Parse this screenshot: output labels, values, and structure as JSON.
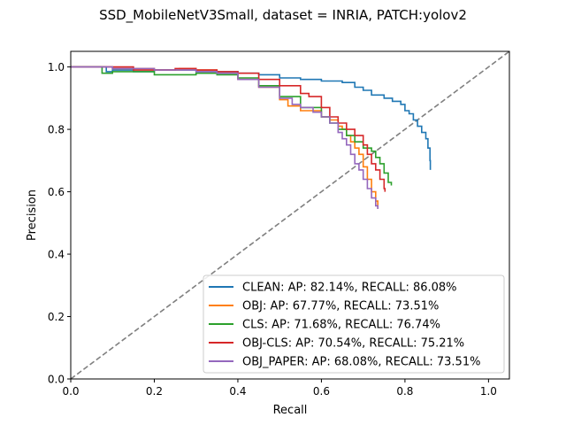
{
  "chart_data": {
    "type": "line",
    "title": "SSD_MobileNetV3Small, dataset = INRIA, PATCH:yolov2",
    "xlabel": "Recall",
    "ylabel": "Precision",
    "xlim": [
      0,
      1.05
    ],
    "ylim": [
      0,
      1.05
    ],
    "xticks": [
      0.0,
      0.2,
      0.4,
      0.6,
      0.8,
      1.0
    ],
    "yticks": [
      0.0,
      0.2,
      0.4,
      0.6,
      0.8,
      1.0
    ],
    "xtick_labels": [
      "0.0",
      "0.2",
      "0.4",
      "0.6",
      "0.8",
      "1.0"
    ],
    "ytick_labels": [
      "0.0",
      "0.2",
      "0.4",
      "0.6",
      "0.8",
      "1.0"
    ],
    "grid": false,
    "legend_position": "lower-right",
    "reference_line": {
      "style": "dashed",
      "color": "#7f7f7f",
      "x": [
        0,
        1.05
      ],
      "y": [
        0,
        1.05
      ]
    },
    "series": [
      {
        "name": "CLEAN: AP: 82.14%, RECALL: 86.08%",
        "color": "#1f77b4",
        "x": [
          0.0,
          0.08,
          0.085,
          0.1,
          0.15,
          0.2,
          0.25,
          0.3,
          0.35,
          0.4,
          0.45,
          0.5,
          0.55,
          0.6,
          0.62,
          0.65,
          0.68,
          0.7,
          0.72,
          0.75,
          0.77,
          0.79,
          0.8,
          0.81,
          0.82,
          0.83,
          0.84,
          0.85,
          0.855,
          0.86,
          0.8608
        ],
        "y": [
          1.0,
          1.0,
          0.985,
          0.99,
          0.985,
          0.99,
          0.99,
          0.985,
          0.985,
          0.98,
          0.975,
          0.965,
          0.96,
          0.955,
          0.955,
          0.95,
          0.935,
          0.925,
          0.91,
          0.9,
          0.89,
          0.88,
          0.86,
          0.85,
          0.83,
          0.81,
          0.79,
          0.77,
          0.74,
          0.7,
          0.67
        ]
      },
      {
        "name": "OBJ: AP: 67.77%, RECALL: 73.51%",
        "color": "#ff7f0e",
        "x": [
          0.0,
          0.1,
          0.2,
          0.26,
          0.3,
          0.35,
          0.4,
          0.45,
          0.5,
          0.52,
          0.55,
          0.57,
          0.6,
          0.62,
          0.64,
          0.65,
          0.66,
          0.67,
          0.68,
          0.69,
          0.7,
          0.71,
          0.72,
          0.73,
          0.7351
        ],
        "y": [
          1.0,
          0.995,
          0.99,
          0.995,
          0.99,
          0.98,
          0.96,
          0.935,
          0.895,
          0.875,
          0.86,
          0.86,
          0.84,
          0.83,
          0.81,
          0.8,
          0.78,
          0.76,
          0.74,
          0.72,
          0.68,
          0.64,
          0.6,
          0.57,
          0.545
        ]
      },
      {
        "name": "CLS: AP: 71.68%, RECALL: 76.74%",
        "color": "#2ca02c",
        "x": [
          0.0,
          0.07,
          0.075,
          0.1,
          0.15,
          0.2,
          0.3,
          0.35,
          0.4,
          0.45,
          0.5,
          0.55,
          0.6,
          0.62,
          0.64,
          0.66,
          0.68,
          0.7,
          0.72,
          0.73,
          0.74,
          0.75,
          0.76,
          0.7674
        ],
        "y": [
          1.0,
          1.0,
          0.98,
          0.985,
          0.985,
          0.975,
          0.98,
          0.975,
          0.965,
          0.94,
          0.905,
          0.87,
          0.84,
          0.82,
          0.8,
          0.78,
          0.76,
          0.74,
          0.73,
          0.71,
          0.69,
          0.66,
          0.63,
          0.62
        ]
      },
      {
        "name": "OBJ-CLS: AP: 70.54%, RECALL: 75.21%",
        "color": "#d62728",
        "x": [
          0.0,
          0.1,
          0.15,
          0.2,
          0.25,
          0.3,
          0.35,
          0.4,
          0.45,
          0.5,
          0.55,
          0.57,
          0.6,
          0.62,
          0.64,
          0.66,
          0.68,
          0.7,
          0.71,
          0.72,
          0.73,
          0.74,
          0.75,
          0.7521
        ],
        "y": [
          1.0,
          1.0,
          0.99,
          0.99,
          0.995,
          0.99,
          0.985,
          0.98,
          0.96,
          0.94,
          0.915,
          0.905,
          0.87,
          0.84,
          0.82,
          0.8,
          0.78,
          0.75,
          0.72,
          0.69,
          0.67,
          0.64,
          0.61,
          0.6
        ]
      },
      {
        "name": "OBJ_PAPER: AP: 68.08%, RECALL: 73.51%",
        "color": "#9467bd",
        "x": [
          0.0,
          0.1,
          0.2,
          0.3,
          0.35,
          0.4,
          0.45,
          0.5,
          0.53,
          0.55,
          0.58,
          0.6,
          0.62,
          0.64,
          0.65,
          0.66,
          0.67,
          0.68,
          0.69,
          0.7,
          0.71,
          0.72,
          0.73,
          0.7351
        ],
        "y": [
          1.0,
          0.995,
          0.99,
          0.985,
          0.98,
          0.96,
          0.935,
          0.9,
          0.88,
          0.87,
          0.855,
          0.84,
          0.82,
          0.79,
          0.77,
          0.75,
          0.72,
          0.69,
          0.67,
          0.64,
          0.61,
          0.58,
          0.555,
          0.545
        ]
      }
    ]
  }
}
